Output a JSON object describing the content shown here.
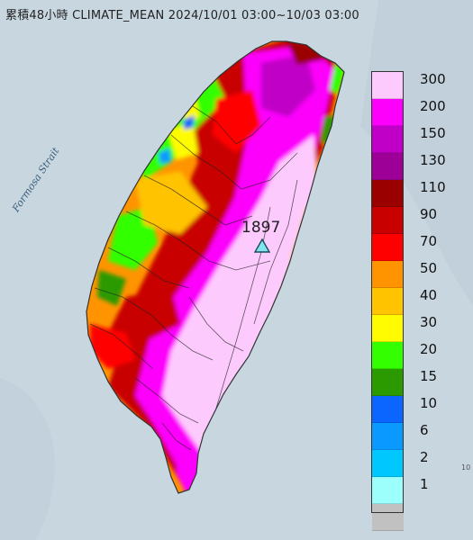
{
  "title": "累積48小時 CLIMATE_MEAN 2024/10/01 03:00~10/03 03:00",
  "sea_label": "Formosa Strait",
  "station": {
    "label": "1897",
    "marker": "triangle-station-icon",
    "color": "#7fe5ef"
  },
  "edge_note": "10",
  "legend": [
    {
      "label": "300",
      "color": "#fdcafd"
    },
    {
      "label": "200",
      "color": "#fc00fc"
    },
    {
      "label": "150",
      "color": "#c000c6"
    },
    {
      "label": "130",
      "color": "#9c0096"
    },
    {
      "label": "110",
      "color": "#9a0000"
    },
    {
      "label": "90",
      "color": "#c80000"
    },
    {
      "label": "70",
      "color": "#ff0000"
    },
    {
      "label": "50",
      "color": "#ff9400"
    },
    {
      "label": "40",
      "color": "#ffc300"
    },
    {
      "label": "30",
      "color": "#fffb00"
    },
    {
      "label": "20",
      "color": "#33ff00"
    },
    {
      "label": "15",
      "color": "#2a9a00"
    },
    {
      "label": "10",
      "color": "#0a66ff"
    },
    {
      "label": "6",
      "color": "#0a9aff"
    },
    {
      "label": "2",
      "color": "#00c8ff"
    },
    {
      "label": "1",
      "color": "#9cfffc"
    },
    {
      "label": "",
      "color": "#c1c1c1"
    }
  ]
}
